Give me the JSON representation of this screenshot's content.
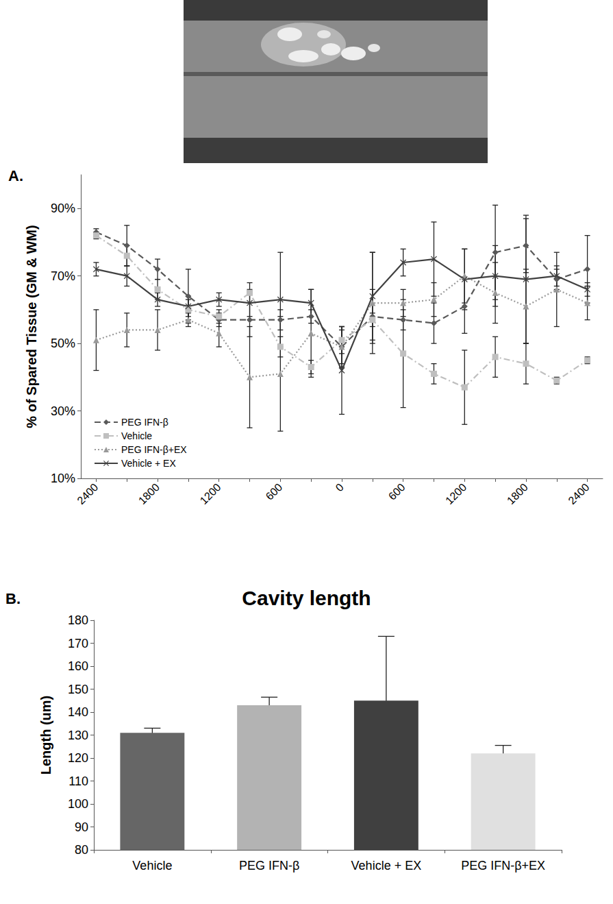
{
  "chart_data": [
    {
      "type": "line",
      "annotations": [
        "A."
      ],
      "ylabel": "% of Spared Tissue (GM & WM)",
      "categories": [
        "2400",
        null,
        "1800",
        null,
        "1200",
        null,
        "600",
        null,
        "0",
        null,
        "600",
        null,
        "1200",
        null,
        "1800",
        null,
        "2400"
      ],
      "ylim": [
        10,
        100
      ],
      "yticks": [
        {
          "value": 10,
          "label": "10%"
        },
        {
          "value": 30,
          "label": "30%"
        },
        {
          "value": 50,
          "label": "50%"
        },
        {
          "value": 70,
          "label": "70%"
        },
        {
          "value": 90,
          "label": "90%"
        }
      ],
      "grid": false,
      "legend": "lower left",
      "series": [
        {
          "name": "PEG IFN-β",
          "color": "#595959",
          "marker": "diamond",
          "line_style": "dashed",
          "values": [
            83,
            79,
            72,
            64,
            57,
            57,
            57,
            58,
            49,
            58,
            57,
            56,
            61,
            77,
            79,
            69,
            72
          ],
          "errors": [
            1,
            6,
            3,
            8,
            2,
            5,
            3,
            2,
            6,
            8,
            3,
            6,
            8,
            14,
            8,
            3,
            10
          ]
        },
        {
          "name": "Vehicle",
          "color": "#bfbfbf",
          "marker": "square",
          "line_style": "dashdot",
          "values": [
            82,
            76,
            66,
            60,
            58,
            65,
            49,
            43,
            51,
            57,
            47,
            41,
            37,
            46,
            44,
            39,
            45
          ],
          "errors": [
            1,
            3,
            3,
            3,
            2,
            3,
            3,
            2,
            4,
            2,
            16,
            3,
            11,
            6,
            6,
            1,
            1
          ]
        },
        {
          "name": "PEG IFN-β+EX",
          "color": "#999999",
          "marker": "triangle",
          "line_style": "dotted",
          "values": [
            51,
            54,
            54,
            57,
            53,
            40,
            41,
            53,
            49,
            62,
            62,
            63,
            70,
            65,
            61,
            66,
            62
          ],
          "errors": [
            9,
            5,
            6,
            2,
            4,
            15,
            17,
            13,
            5,
            15,
            4,
            5,
            8,
            9,
            11,
            11,
            5
          ]
        },
        {
          "name": "Vehicle + EX",
          "color": "#404040",
          "marker": "x",
          "line_style": "solid",
          "values": [
            72,
            70,
            63,
            61,
            63,
            62,
            63,
            62,
            42,
            64,
            74,
            75,
            69,
            70,
            69,
            70,
            66
          ],
          "errors": [
            2,
            3,
            2,
            3,
            2,
            4,
            14,
            4,
            13,
            13,
            4,
            11,
            9,
            9,
            19,
            3,
            2
          ]
        }
      ]
    },
    {
      "type": "bar",
      "annotations": [
        "B."
      ],
      "title": "Cavity length",
      "ylabel": "Length (um)",
      "categories": [
        "Vehicle",
        "PEG IFN-β",
        "Vehicle + EX",
        "PEG IFN-β+EX"
      ],
      "values": [
        131,
        143,
        145,
        122
      ],
      "errors": [
        2,
        3.5,
        28,
        3.5
      ],
      "colors": [
        "#666666",
        "#b3b3b3",
        "#404040",
        "#e0e0e0"
      ],
      "ylim": [
        80,
        180
      ],
      "yticks": [
        80,
        90,
        100,
        110,
        120,
        130,
        140,
        150,
        160,
        170,
        180
      ],
      "grid": false
    }
  ]
}
